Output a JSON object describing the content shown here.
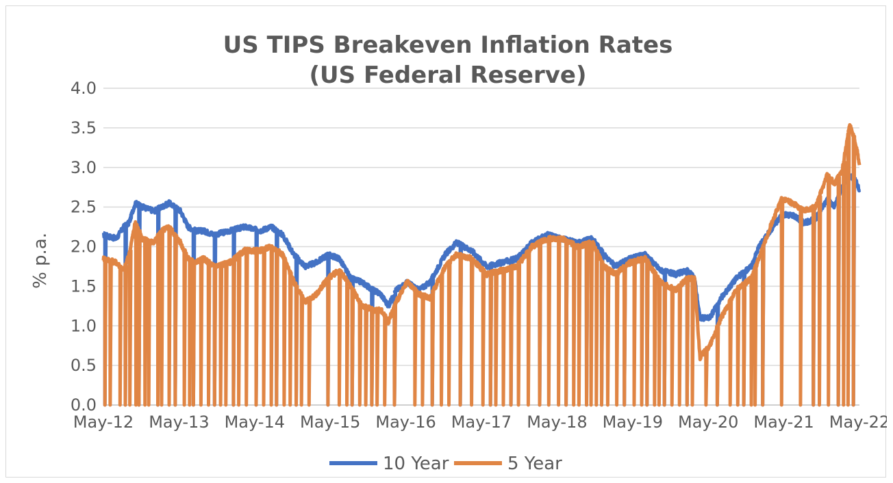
{
  "chart_data": {
    "type": "line",
    "title": "US TIPS Breakeven Inflation Rates",
    "subtitle": "(US Federal Reserve)",
    "ylabel": "% p.a.",
    "xlabel": "",
    "ylim": [
      0,
      4
    ],
    "yticks": [
      "0.0",
      "0.5",
      "1.0",
      "1.5",
      "2.0",
      "2.5",
      "3.0",
      "3.5",
      "4.0"
    ],
    "xlim": [
      2012.33,
      2022.33
    ],
    "xticks": [
      "May-12",
      "May-13",
      "May-14",
      "May-15",
      "May-16",
      "May-17",
      "May-18",
      "May-19",
      "May-20",
      "May-21",
      "May-22"
    ],
    "grid": "horizontal",
    "legend": "bottom",
    "series": [
      {
        "name": "10 Year",
        "color": "#4472c4",
        "x": [
          2012.33,
          2012.5,
          2012.6,
          2012.67,
          2012.75,
          2012.85,
          2013.0,
          2013.1,
          2013.2,
          2013.35,
          2013.45,
          2013.55,
          2013.65,
          2013.8,
          2014.0,
          2014.2,
          2014.4,
          2014.55,
          2014.7,
          2014.85,
          2015.0,
          2015.15,
          2015.3,
          2015.45,
          2015.6,
          2015.75,
          2015.9,
          2016.0,
          2016.1,
          2016.2,
          2016.35,
          2016.5,
          2016.65,
          2016.85,
          2017.0,
          2017.2,
          2017.4,
          2017.6,
          2017.8,
          2018.0,
          2018.2,
          2018.4,
          2018.6,
          2018.8,
          2018.95,
          2019.1,
          2019.3,
          2019.5,
          2019.7,
          2019.9,
          2020.05,
          2020.15,
          2020.22,
          2020.35,
          2020.5,
          2020.7,
          2020.9,
          2021.0,
          2021.15,
          2021.3,
          2021.45,
          2021.6,
          2021.75,
          2021.9,
          2022.0,
          2022.1,
          2022.2,
          2022.28,
          2022.33
        ],
        "values": [
          2.15,
          2.1,
          2.25,
          2.3,
          2.55,
          2.5,
          2.45,
          2.5,
          2.55,
          2.45,
          2.25,
          2.2,
          2.2,
          2.15,
          2.2,
          2.25,
          2.2,
          2.25,
          2.15,
          1.9,
          1.75,
          1.8,
          1.9,
          1.85,
          1.6,
          1.55,
          1.45,
          1.4,
          1.25,
          1.45,
          1.55,
          1.45,
          1.55,
          1.9,
          2.05,
          1.95,
          1.75,
          1.8,
          1.85,
          2.05,
          2.15,
          2.1,
          2.05,
          2.1,
          1.9,
          1.75,
          1.85,
          1.9,
          1.7,
          1.65,
          1.7,
          1.6,
          1.1,
          1.1,
          1.35,
          1.6,
          1.75,
          2.0,
          2.2,
          2.4,
          2.4,
          2.3,
          2.35,
          2.6,
          2.5,
          2.75,
          2.9,
          2.85,
          2.7
        ]
      },
      {
        "name": "5 Year",
        "color": "#e08544",
        "x": [
          2012.33,
          2012.5,
          2012.6,
          2012.67,
          2012.75,
          2012.85,
          2013.0,
          2013.1,
          2013.2,
          2013.35,
          2013.45,
          2013.55,
          2013.65,
          2013.8,
          2014.0,
          2014.2,
          2014.4,
          2014.55,
          2014.7,
          2014.85,
          2015.0,
          2015.15,
          2015.3,
          2015.45,
          2015.6,
          2015.75,
          2015.9,
          2016.0,
          2016.1,
          2016.2,
          2016.35,
          2016.5,
          2016.65,
          2016.85,
          2017.0,
          2017.2,
          2017.4,
          2017.6,
          2017.8,
          2018.0,
          2018.2,
          2018.4,
          2018.6,
          2018.8,
          2018.95,
          2019.1,
          2019.3,
          2019.5,
          2019.7,
          2019.9,
          2020.05,
          2020.15,
          2020.22,
          2020.35,
          2020.5,
          2020.7,
          2020.9,
          2021.0,
          2021.15,
          2021.3,
          2021.45,
          2021.6,
          2021.75,
          2021.9,
          2022.0,
          2022.1,
          2022.2,
          2022.28,
          2022.33
        ],
        "values": [
          1.85,
          1.8,
          1.7,
          1.9,
          2.3,
          2.1,
          2.05,
          2.2,
          2.25,
          2.05,
          1.85,
          1.8,
          1.85,
          1.75,
          1.8,
          1.95,
          1.95,
          2.0,
          1.9,
          1.55,
          1.3,
          1.4,
          1.6,
          1.7,
          1.5,
          1.25,
          1.2,
          1.2,
          1.05,
          1.3,
          1.55,
          1.4,
          1.35,
          1.75,
          1.9,
          1.85,
          1.65,
          1.7,
          1.75,
          2.0,
          2.1,
          2.1,
          2.0,
          2.05,
          1.75,
          1.65,
          1.8,
          1.85,
          1.55,
          1.45,
          1.6,
          1.6,
          0.6,
          0.75,
          1.1,
          1.45,
          1.6,
          1.85,
          2.25,
          2.6,
          2.55,
          2.45,
          2.5,
          2.9,
          2.8,
          2.95,
          3.55,
          3.3,
          3.05
        ]
      }
    ],
    "dropouts": [
      2012.35,
      2012.42,
      2012.55,
      2012.62,
      2012.68,
      2012.76,
      2012.8,
      2012.88,
      2012.93,
      2013.05,
      2013.1,
      2013.2,
      2013.28,
      2013.4,
      2013.47,
      2013.52,
      2013.62,
      2013.72,
      2013.8,
      2013.88,
      2013.95,
      2014.05,
      2014.12,
      2014.22,
      2014.35,
      2014.45,
      2014.55,
      2014.62,
      2014.72,
      2014.8,
      2014.88,
      2014.95,
      2015.05,
      2015.3,
      2015.45,
      2015.55,
      2015.62,
      2015.72,
      2015.8,
      2015.88,
      2015.95,
      2016.05,
      2016.18,
      2016.45,
      2016.55,
      2016.68,
      2016.8,
      2016.9,
      2017.05,
      2017.2,
      2017.35,
      2017.45,
      2017.52,
      2017.62,
      2017.72,
      2017.82,
      2017.95,
      2018.1,
      2018.22,
      2018.35,
      2018.45,
      2018.55,
      2018.62,
      2018.72,
      2018.78,
      2018.85,
      2018.92,
      2019.0,
      2019.12,
      2019.22,
      2019.35,
      2019.45,
      2019.52,
      2019.62,
      2019.68,
      2019.75,
      2019.85,
      2019.95,
      2020.05,
      2020.12,
      2020.3,
      2020.45,
      2020.62,
      2020.72,
      2020.8,
      2020.9,
      2020.95,
      2021.05,
      2021.3,
      2021.55,
      2021.72,
      2021.8,
      2021.92,
      2022.05,
      2022.12,
      2022.18,
      2022.25
    ]
  },
  "legend": {
    "items": [
      {
        "label": "10 Year",
        "color": "#4472c4"
      },
      {
        "label": "5 Year",
        "color": "#e08544"
      }
    ]
  }
}
